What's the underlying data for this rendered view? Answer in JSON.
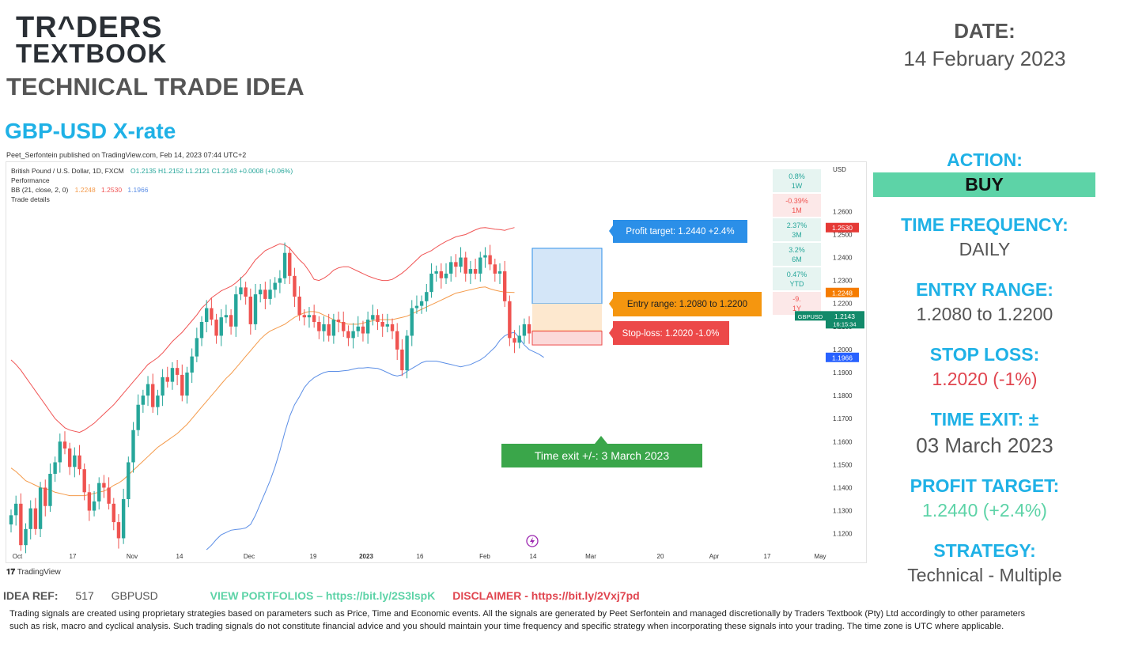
{
  "brand": {
    "line1": "TR^DERS",
    "line2": "TEXTBOOK"
  },
  "header": {
    "title": "TECHNICAL TRADE IDEA",
    "pair_title": "GBP-USD X-rate"
  },
  "date": {
    "label": "DATE:",
    "value": "14 February 2023"
  },
  "published": "Peet_Serfontein published on TradingView.com, Feb 14, 2023 07:44 UTC+2",
  "legend": {
    "line1_prefix": "British Pound / U.S. Dollar, 1D, FXCM",
    "ohlc": "O1.2135  H1.2152  L1.2121  C1.2143  +0.0008 (+0.06%)",
    "line2": "Performance",
    "bb_label": "BB (21, close, 2, 0)",
    "bb_mid": "1.2248",
    "bb_up": "1.2530",
    "bb_low": "1.1966",
    "line4": "Trade details"
  },
  "colors": {
    "bb_upper": "#f05454",
    "bb_mid": "#f49a4a",
    "bb_lower": "#5b8ee6",
    "up": "#26a69a",
    "down": "#ef5350",
    "accent": "#1fb1e6",
    "action": "#5dd3a7"
  },
  "performance": [
    {
      "value": "0.8%",
      "period": "1W",
      "dir": "up"
    },
    {
      "value": "-0.39%",
      "period": "1M",
      "dir": "down"
    },
    {
      "value": "2.37%",
      "period": "3M",
      "dir": "up"
    },
    {
      "value": "3.2%",
      "period": "6M",
      "dir": "up"
    },
    {
      "value": "0.47%",
      "period": "YTD",
      "dir": "up"
    },
    {
      "value": "-9.",
      "period": "1Y",
      "dir": "down"
    }
  ],
  "price_tags": {
    "upper": "1.2530",
    "mid": "1.2248",
    "symbol": "GBPUSD",
    "price": "1.2143",
    "countdown": "16:15:34",
    "lower": "1.1966"
  },
  "chart_data": {
    "type": "candlestick",
    "title": "British Pound / U.S. Dollar, 1D, FXCM",
    "y_unit": "USD",
    "ylim": [
      1.113,
      1.278
    ],
    "y_ticks": [
      "1.2600",
      "1.2500",
      "1.2400",
      "1.2300",
      "1.2200",
      "1.2100",
      "1.2000",
      "1.1900",
      "1.1800",
      "1.1700",
      "1.1600",
      "1.1500",
      "1.1400",
      "1.1300",
      "1.1200"
    ],
    "x_ticks": [
      "Oct",
      "17",
      "Nov",
      "14",
      "Dec",
      "19",
      "2023",
      "16",
      "Feb",
      "14",
      "Mar",
      "20",
      "Apr",
      "17",
      "May"
    ],
    "closes": [
      1.128,
      1.133,
      1.115,
      1.122,
      1.131,
      1.122,
      1.14,
      1.132,
      1.146,
      1.151,
      1.16,
      1.157,
      1.149,
      1.154,
      1.148,
      1.138,
      1.13,
      1.134,
      1.142,
      1.14,
      1.133,
      1.125,
      1.118,
      1.135,
      1.151,
      1.165,
      1.176,
      1.18,
      1.185,
      1.175,
      1.18,
      1.188,
      1.186,
      1.192,
      1.189,
      1.18,
      1.19,
      1.197,
      1.205,
      1.212,
      1.218,
      1.213,
      1.206,
      1.214,
      1.215,
      1.21,
      1.224,
      1.227,
      1.223,
      1.211,
      1.224,
      1.226,
      1.222,
      1.226,
      1.229,
      1.231,
      1.242,
      1.232,
      1.223,
      1.215,
      1.214,
      1.215,
      1.212,
      1.208,
      1.211,
      1.206,
      1.213,
      1.212,
      1.208,
      1.205,
      1.208,
      1.21,
      1.207,
      1.213,
      1.215,
      1.212,
      1.21,
      1.211,
      1.208,
      1.2,
      1.191,
      1.206,
      1.218,
      1.219,
      1.221,
      1.225,
      1.233,
      1.234,
      1.231,
      1.233,
      1.238,
      1.236,
      1.24,
      1.233,
      1.235,
      1.233,
      1.24,
      1.241,
      1.237,
      1.233,
      1.234,
      1.221,
      1.205,
      1.203,
      1.206,
      1.211,
      1.207,
      1.213,
      1.212,
      1.214
    ],
    "bb_upper": [
      1.1955,
      1.1935,
      1.191,
      1.188,
      1.185,
      1.182,
      1.179,
      1.176,
      1.173,
      1.17,
      1.168,
      1.166,
      1.165,
      1.1645,
      1.164,
      1.165,
      1.1665,
      1.168,
      1.17,
      1.172,
      1.174,
      1.176,
      1.1785,
      1.181,
      1.1835,
      1.186,
      1.1885,
      1.191,
      1.1935,
      1.195,
      1.1965,
      1.1985,
      1.201,
      1.2035,
      1.2055,
      1.2075,
      1.21,
      1.2125,
      1.215,
      1.218,
      1.22,
      1.2225,
      1.224,
      1.2255,
      1.2265,
      1.2275,
      1.229,
      1.231,
      1.233,
      1.236,
      1.239,
      1.241,
      1.243,
      1.244,
      1.245,
      1.246,
      1.2455,
      1.244,
      1.2415,
      1.239,
      1.237,
      1.234,
      1.2305,
      1.23,
      1.231,
      1.2325,
      1.2345,
      1.2355,
      1.236,
      1.236,
      1.235,
      1.234,
      1.233,
      1.232,
      1.2312,
      1.2305,
      1.23,
      1.23,
      1.2305,
      1.2318,
      1.2332,
      1.235,
      1.237,
      1.239,
      1.241,
      1.242,
      1.243,
      1.2445,
      1.2458,
      1.247,
      1.248,
      1.249,
      1.2495,
      1.25,
      1.251,
      1.252,
      1.2528,
      1.253,
      1.2527,
      1.2523,
      1.2521,
      1.2518,
      1.2525,
      1.253
    ],
    "bb_mid": [
      1.1485,
      1.147,
      1.145,
      1.143,
      1.142,
      1.141,
      1.14,
      1.1395,
      1.139,
      1.138,
      1.1375,
      1.137,
      1.1365,
      1.1365,
      1.1365,
      1.1365,
      1.137,
      1.1375,
      1.138,
      1.1385,
      1.1395,
      1.141,
      1.142,
      1.1435,
      1.1455,
      1.1475,
      1.1495,
      1.1515,
      1.1535,
      1.1555,
      1.1575,
      1.159,
      1.1605,
      1.162,
      1.1635,
      1.1655,
      1.1675,
      1.17,
      1.1725,
      1.175,
      1.1775,
      1.18,
      1.1825,
      1.185,
      1.1875,
      1.1895,
      1.192,
      1.1945,
      1.197,
      1.1995,
      1.202,
      1.2045,
      1.2065,
      1.208,
      1.209,
      1.21,
      1.211,
      1.2125,
      1.214,
      1.215,
      1.216,
      1.2165,
      1.2165,
      1.216,
      1.215,
      1.214,
      1.213,
      1.212,
      1.2115,
      1.211,
      1.211,
      1.211,
      1.2115,
      1.212,
      1.2125,
      1.213,
      1.213,
      1.213,
      1.213,
      1.2135,
      1.214,
      1.2145,
      1.2155,
      1.2165,
      1.2175,
      1.2185,
      1.2195,
      1.2205,
      1.2215,
      1.2225,
      1.2235,
      1.2245,
      1.225,
      1.2255,
      1.226,
      1.2265,
      1.227,
      1.2272,
      1.2264,
      1.2258,
      1.2253,
      1.225,
      1.2249,
      1.2248
    ],
    "bb_lower": [
      null,
      null,
      null,
      null,
      null,
      null,
      null,
      null,
      null,
      null,
      null,
      null,
      null,
      null,
      null,
      null,
      null,
      null,
      null,
      null,
      null,
      null,
      null,
      null,
      null,
      null,
      null,
      null,
      null,
      null,
      null,
      null,
      null,
      null,
      null,
      null,
      null,
      null,
      null,
      null,
      1.113,
      1.115,
      1.1175,
      1.1195,
      1.1205,
      1.1215,
      1.1218,
      1.122,
      1.1225,
      1.124,
      1.128,
      1.133,
      1.138,
      1.143,
      1.149,
      1.156,
      1.164,
      1.171,
      1.176,
      1.1795,
      1.1835,
      1.186,
      1.1878,
      1.189,
      1.19,
      1.1905,
      1.1905,
      1.1905,
      1.1908,
      1.191,
      1.1915,
      1.192,
      1.192,
      1.1922,
      1.192,
      1.1918,
      1.191,
      1.19,
      1.189,
      1.1885,
      1.189,
      1.1905,
      1.1918,
      1.193,
      1.1943,
      1.195,
      1.195,
      1.195,
      1.1945,
      1.194,
      1.1935,
      1.193,
      1.1925,
      1.193,
      1.1935,
      1.1945,
      1.1955,
      1.197,
      1.199,
      1.201,
      1.204,
      1.206,
      1.207,
      1.2075,
      1.205,
      1.202,
      1.2,
      1.199,
      1.198,
      1.1966
    ],
    "trade": {
      "profit_target": 1.244,
      "entry_low": 1.208,
      "entry_high": 1.22,
      "stop_loss": 1.202
    }
  },
  "trade_labels": {
    "profit": "Profit target: 1.2440 +2.4%",
    "entry": "Entry range: 1.2080 to 1.2200",
    "stop": "Stop-loss: 1.2020 -1.0%",
    "time_exit": "Time exit +/-: 3 March 2023"
  },
  "tradingview": "TradingView",
  "panel": {
    "action_label": "ACTION:",
    "action_value": "BUY",
    "time_freq_label": "TIME FREQUENCY:",
    "time_freq_value": "DAILY",
    "entry_label": "ENTRY RANGE:",
    "entry_value": "1.2080 to 1.2200",
    "stop_label": "STOP LOSS:",
    "stop_value": "1.2020 (-1%)",
    "exit_label": "TIME EXIT: ±",
    "exit_value": "03 March 2023",
    "profit_label": "PROFIT TARGET:",
    "profit_value": "1.2440 (+2.4%)",
    "strategy_label": "STRATEGY:",
    "strategy_value": "Technical - Multiple"
  },
  "footer": {
    "idea_ref_label": "IDEA REF:",
    "idea_ref_num": "517",
    "idea_ref_sym": "GBPUSD",
    "portfolios": "VIEW PORTFOLIOS – https://bit.ly/2S3lspK",
    "disclaimer": "DISCLAIMER -  https://bit.ly/2Vxj7pd",
    "text": "Trading signals are created using proprietary strategies based on parameters such as Price, Time and Economic events.  All the signals are generated by Peet Serfontein and managed discretionally by Traders Textbook (Pty) Ltd accordingly to other parameters such as risk, macro and cyclical analysis. Such trading signals do not constitute financial advice and you should maintain your time frequency and specific strategy when incorporating these signals into your trading. The time zone is UTC where applicable."
  }
}
